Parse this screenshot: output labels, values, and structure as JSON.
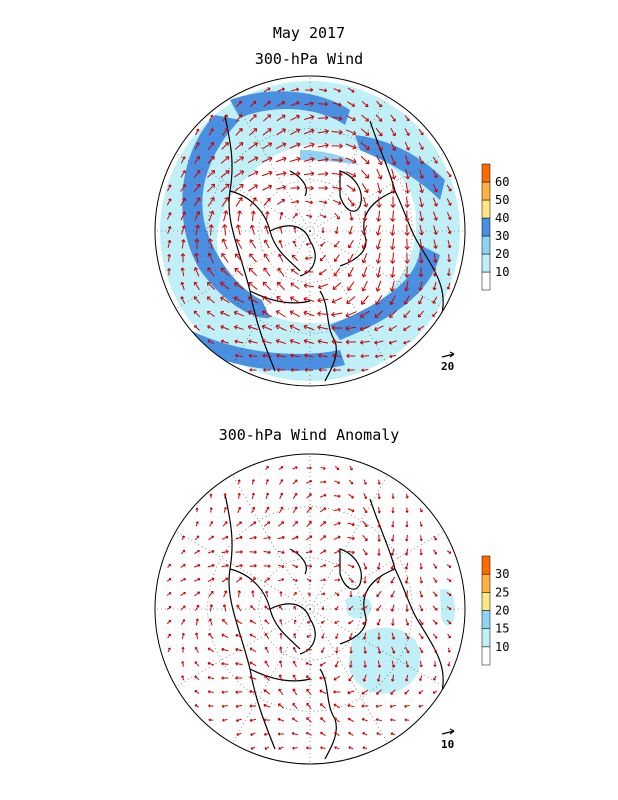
{
  "figure": {
    "title": "May 2017",
    "top_panel_title": "300-hPa Wind",
    "bottom_panel_title": "300-hPa Wind Anomaly"
  },
  "top_panel": {
    "colorbar": {
      "labels": [
        "10",
        "20",
        "30",
        "40",
        "50",
        "60"
      ],
      "colors": [
        "#ffffff",
        "#bff0f8",
        "#8fd3f3",
        "#4a90e2",
        "#ffe680",
        "#ffb040",
        "#ff6a00"
      ]
    },
    "reference_vector": "20",
    "shading_colors": {
      "light": "#bff0f8",
      "mid": "#8fd3f3",
      "strong": "#4a90e2"
    }
  },
  "bottom_panel": {
    "colorbar": {
      "labels": [
        "10",
        "15",
        "20",
        "25",
        "30"
      ],
      "colors": [
        "#ffffff",
        "#bff0f8",
        "#8fd3f3",
        "#ffe680",
        "#ffb040",
        "#ff6a00"
      ]
    },
    "reference_vector": "10",
    "shading_colors": {
      "light": "#bff0f8",
      "mid": "#8fd3f3"
    }
  },
  "vector_color": "#cc0000",
  "coast_color": "#000000"
}
